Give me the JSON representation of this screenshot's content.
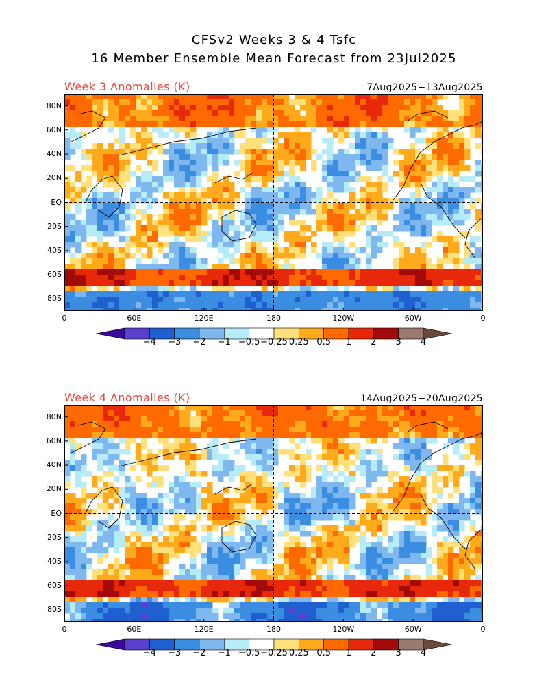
{
  "header": {
    "title_line1": "CFSv2 Weeks 3 & 4 Tsfc",
    "title_line2": "16 Member Ensemble Mean Forecast from 23Jul2025"
  },
  "panels": [
    {
      "title": "Week 3 Anomalies (K)",
      "date_range": "7Aug2025−13Aug2025",
      "seed": 11
    },
    {
      "title": "Week 4 Anomalies (K)",
      "date_range": "14Aug2025−20Aug2025",
      "seed": 37
    }
  ],
  "axes": {
    "lat_labels": [
      "80N",
      "60N",
      "40N",
      "20N",
      "EQ",
      "20S",
      "40S",
      "60S",
      "80S"
    ],
    "lat_values": [
      80,
      60,
      40,
      20,
      0,
      -20,
      -40,
      -60,
      -80
    ],
    "lon_labels": [
      "0",
      "60E",
      "120E",
      "180",
      "120W",
      "60W",
      "0"
    ],
    "lon_values": [
      0,
      60,
      120,
      180,
      240,
      300,
      360
    ],
    "lat_range": [
      -90,
      90
    ],
    "lon_range": [
      0,
      360
    ]
  },
  "colorbar": {
    "labels": [
      "−4",
      "−3",
      "−2",
      "−1",
      "−0.5",
      "−0.25",
      "0.25",
      "0.5",
      "1",
      "2",
      "3",
      "4"
    ],
    "colors": [
      "#3a0a9a",
      "#5b3fcf",
      "#1f5fd0",
      "#3a8de0",
      "#7eb8ee",
      "#b5ecf7",
      "#ffffff",
      "#ffe07a",
      "#ffaa1a",
      "#ff6a00",
      "#e8280a",
      "#a30a0a",
      "#9a7a6e",
      "#6b4a3e"
    ]
  }
}
